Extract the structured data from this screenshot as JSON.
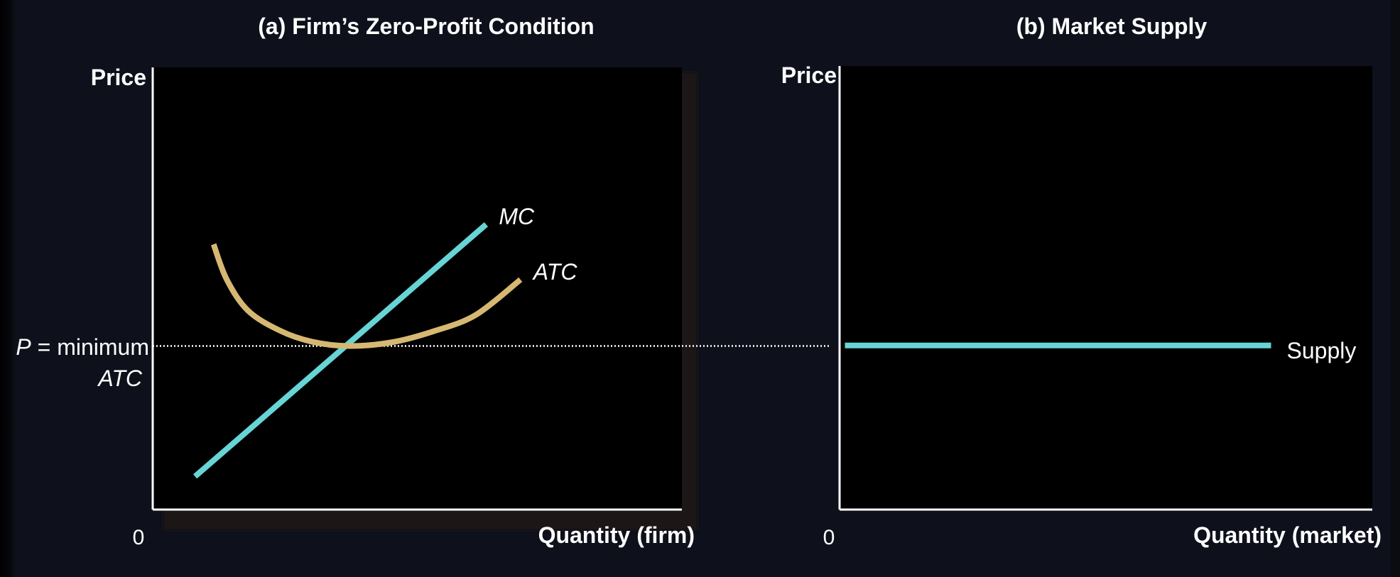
{
  "colors": {
    "background": "#0e111b",
    "plot_background": "#000000",
    "mc_line": "#67d5d6",
    "atc_curve": "#d6b872",
    "supply_line": "#67d5d6",
    "axis": "#ffffff",
    "text": "#ffffff"
  },
  "panels": {
    "firm": {
      "title": "(a) Firm’s Zero-Profit Condition",
      "ylabel": "Price",
      "xlabel": "Quantity (firm)",
      "origin": "0",
      "price_label_p": "P",
      "price_label_rest": " = minimum",
      "price_label_atc": "ATC"
    },
    "market": {
      "title": "(b) Market Supply",
      "ylabel": "Price",
      "xlabel": "Quantity (market)",
      "origin": "0"
    }
  },
  "chart_data": [
    {
      "type": "line",
      "title": "(a) Firm’s Zero-Profit Condition",
      "xlabel": "Quantity (firm)",
      "ylabel": "Price",
      "xlim": [
        0,
        100
      ],
      "ylim": [
        0,
        100
      ],
      "grid": false,
      "reference_lines": [
        {
          "axis": "y",
          "value": 37,
          "style": "dotted",
          "label": "P = minimum ATC"
        }
      ],
      "series": [
        {
          "name": "MC",
          "label_style": "italic",
          "x": [
            8,
            63
          ],
          "y": [
            7.5,
            64.5
          ]
        },
        {
          "name": "ATC",
          "label_style": "italic",
          "x": [
            11.5,
            14,
            18,
            24,
            30,
            37,
            45,
            53,
            61,
            69.5
          ],
          "y": [
            60,
            52,
            45,
            40.5,
            38,
            37,
            37.8,
            40.3,
            44,
            52
          ]
        }
      ]
    },
    {
      "type": "line",
      "title": "(b) Market Supply",
      "xlabel": "Quantity (market)",
      "ylabel": "Price",
      "xlim": [
        0,
        100
      ],
      "ylim": [
        0,
        100
      ],
      "grid": false,
      "series": [
        {
          "name": "Supply",
          "x": [
            1,
            81
          ],
          "y": [
            37,
            37
          ]
        }
      ]
    }
  ]
}
